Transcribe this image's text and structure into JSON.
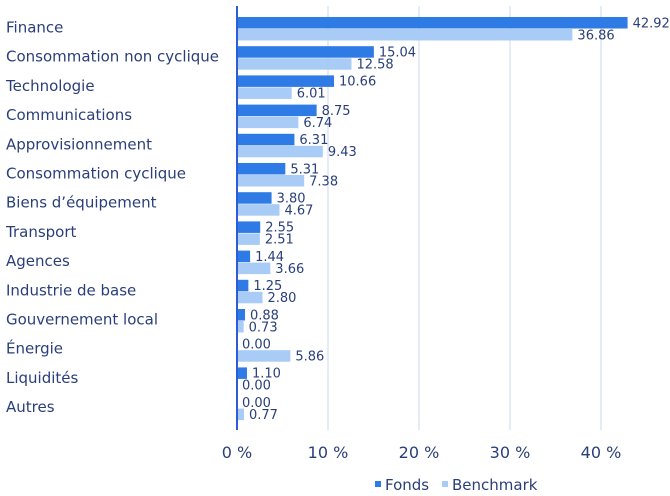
{
  "chart_data": {
    "type": "bar",
    "orientation": "horizontal",
    "categories": [
      "Finance",
      "Consommation non cyclique",
      "Technologie",
      "Communications",
      "Approvisionnement",
      "Consommation cyclique",
      "Biens d’équipement",
      "Transport",
      "Agences",
      "Industrie de base",
      "Gouvernement local",
      "Énergie",
      "Liquidités",
      "Autres"
    ],
    "series": [
      {
        "name": "Fonds",
        "color": "#2e7be6",
        "values": [
          42.92,
          15.04,
          10.66,
          8.75,
          6.31,
          5.31,
          3.8,
          2.55,
          1.44,
          1.25,
          0.88,
          0.0,
          1.1,
          0.0
        ],
        "labels": [
          "42.92",
          "15.04",
          "10.66",
          "8.75",
          "6.31",
          "5.31",
          "3.80",
          "2.55",
          "1.44",
          "1.25",
          "0.88",
          "0.00",
          "1.10",
          "0.00"
        ]
      },
      {
        "name": "Benchmark",
        "color": "#a8ccf6",
        "values": [
          36.86,
          12.58,
          6.01,
          6.74,
          9.43,
          7.38,
          4.67,
          2.51,
          3.66,
          2.8,
          0.73,
          5.86,
          0.0,
          0.77
        ],
        "labels": [
          "36.86",
          "12.58",
          "6.01",
          "6.74",
          "9.43",
          "7.38",
          "4.67",
          "2.51",
          "3.66",
          "2.80",
          "0.73",
          "5.86",
          "0.00",
          "0.77"
        ]
      }
    ],
    "xlim": [
      0,
      46
    ],
    "xticks": [
      0,
      10,
      20,
      30,
      40
    ],
    "xtick_labels": [
      "0 %",
      "10 %",
      "20 %",
      "30 %",
      "40 %"
    ],
    "grid": true,
    "legend_position": "bottom-right",
    "title": "",
    "xlabel": "",
    "ylabel": ""
  }
}
